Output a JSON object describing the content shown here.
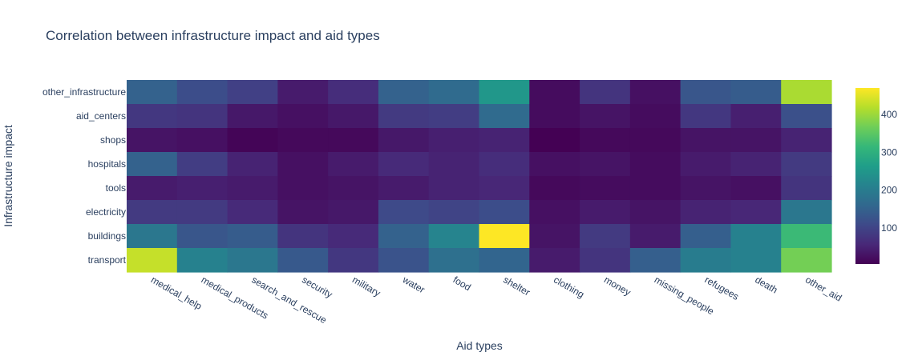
{
  "chart_data": {
    "type": "heatmap",
    "title": "Correlation between infrastructure impact and aid types",
    "xlabel": "Aid types",
    "ylabel": "Infrastructure impact",
    "x": [
      "medical_help",
      "medical_products",
      "search_and_rescue",
      "security",
      "military",
      "water",
      "food",
      "shelter",
      "clothing",
      "money",
      "missing_people",
      "refugees",
      "death",
      "other_aid"
    ],
    "y": [
      "other_infrastructure",
      "aid_centers",
      "shops",
      "hospitals",
      "tools",
      "electricity",
      "buildings",
      "transport"
    ],
    "z": [
      [
        150,
        115,
        95,
        40,
        65,
        150,
        165,
        250,
        20,
        75,
        25,
        130,
        140,
        410
      ],
      [
        80,
        75,
        35,
        25,
        35,
        85,
        90,
        165,
        20,
        30,
        20,
        80,
        45,
        120
      ],
      [
        30,
        25,
        10,
        15,
        15,
        35,
        45,
        50,
        5,
        15,
        15,
        30,
        30,
        50
      ],
      [
        150,
        90,
        50,
        25,
        40,
        60,
        50,
        65,
        25,
        30,
        20,
        40,
        50,
        85
      ],
      [
        40,
        45,
        40,
        25,
        30,
        40,
        50,
        55,
        15,
        20,
        20,
        30,
        25,
        75
      ],
      [
        85,
        85,
        60,
        30,
        35,
        110,
        100,
        115,
        25,
        40,
        30,
        50,
        55,
        190
      ],
      [
        190,
        130,
        140,
        75,
        60,
        150,
        215,
        470,
        30,
        85,
        40,
        145,
        210,
        320
      ],
      [
        430,
        210,
        190,
        135,
        80,
        125,
        175,
        155,
        40,
        75,
        145,
        200,
        210,
        370
      ]
    ],
    "zmin": 5,
    "zmax": 470,
    "colorscale": "Viridis",
    "colorbar_ticks": [
      100,
      200,
      300,
      400
    ]
  }
}
